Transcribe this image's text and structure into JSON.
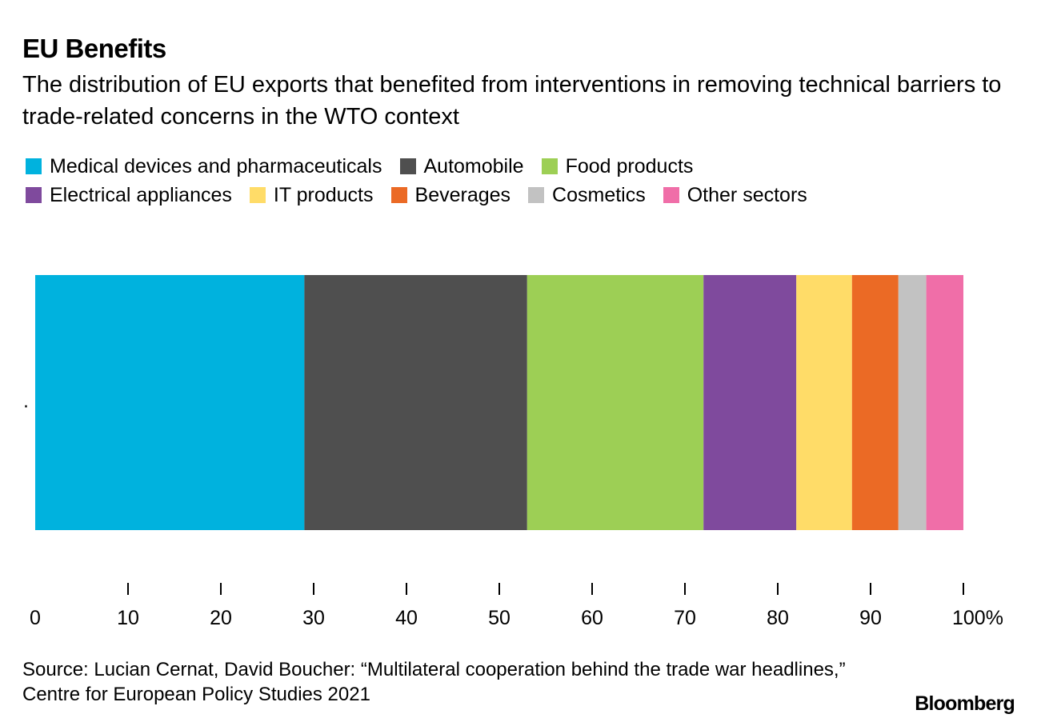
{
  "chart_data": {
    "type": "bar",
    "orientation": "horizontal-stacked",
    "title": "EU Benefits",
    "subtitle": "The distribution of EU exports that benefited from interventions in removing technical barriers to trade-related concerns in the WTO context",
    "categories": [
      "."
    ],
    "series": [
      {
        "name": "Medical devices and pharmaceuticals",
        "values": [
          29
        ],
        "color": "#00B2DE"
      },
      {
        "name": "Automobile",
        "values": [
          24
        ],
        "color": "#4F4F4F"
      },
      {
        "name": "Food products",
        "values": [
          19
        ],
        "color": "#9DCF55"
      },
      {
        "name": "Electrical appliances",
        "values": [
          10
        ],
        "color": "#7F4A9D"
      },
      {
        "name": "IT products",
        "values": [
          6
        ],
        "color": "#FFDC68"
      },
      {
        "name": "Beverages",
        "values": [
          5
        ],
        "color": "#EB6A25"
      },
      {
        "name": "Cosmetics",
        "values": [
          3
        ],
        "color": "#C2C2C2"
      },
      {
        "name": "Other sectors",
        "values": [
          4
        ],
        "color": "#F06EA8"
      }
    ],
    "xlim": [
      0,
      100
    ],
    "x_ticks": [
      0,
      10,
      20,
      30,
      40,
      50,
      60,
      70,
      80,
      90,
      100
    ],
    "x_tick_labels": [
      "0",
      "10",
      "20",
      "30",
      "40",
      "50",
      "60",
      "70",
      "80",
      "90",
      "100%"
    ],
    "xlabel": "",
    "ylabel": "",
    "grid": false,
    "legend_position": "top-left"
  },
  "legend_rows": [
    [
      0,
      1,
      2
    ],
    [
      3,
      4,
      5,
      6,
      7
    ]
  ],
  "footer": {
    "source": "Source: Lucian Cernat, David Boucher: “Multilateral cooperation behind the trade war headlines,” Centre for European Policy Studies 2021",
    "brand": "Bloomberg"
  }
}
